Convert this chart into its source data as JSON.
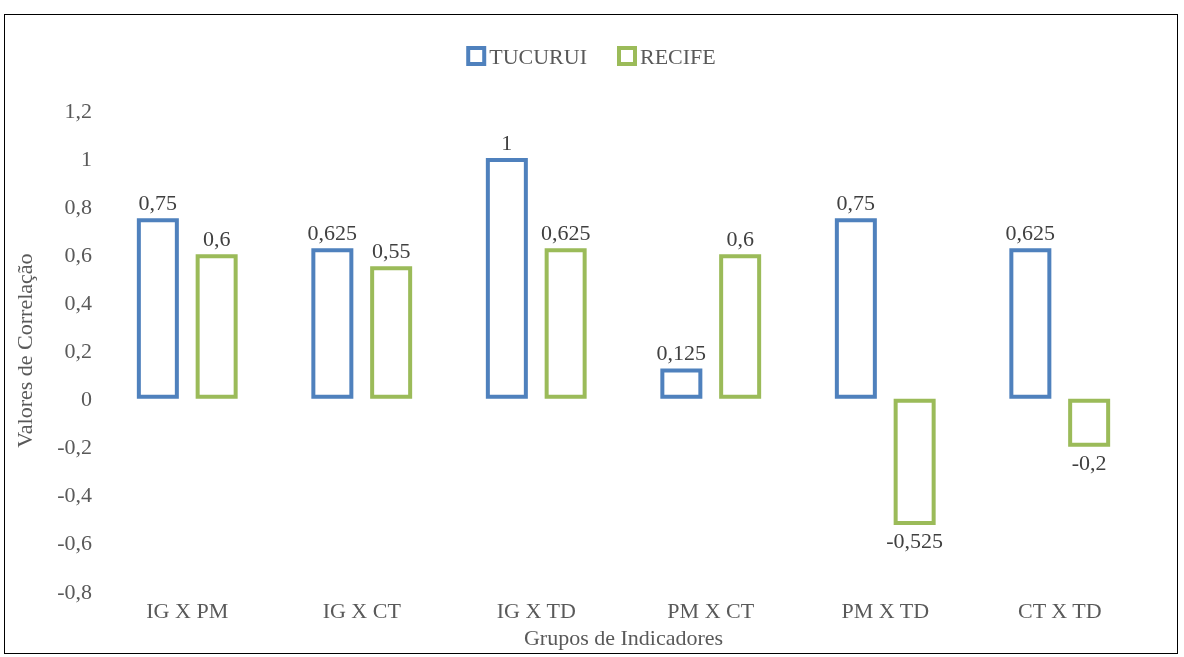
{
  "chart_data": {
    "type": "bar",
    "xlabel": "Grupos de Indicadores",
    "ylabel": "Valores de Correlação",
    "categories": [
      "IG X PM",
      "IG X CT",
      "IG X TD",
      "PM X CT",
      "PM X TD",
      "CT X TD"
    ],
    "series": [
      {
        "name": "TUCURUI",
        "color": "#4f81bd",
        "values": [
          0.75,
          0.625,
          1,
          0.125,
          0.75,
          0.625
        ],
        "value_labels": [
          "0,75",
          "0,625",
          "1",
          "0,125",
          "0,75",
          "0,625"
        ]
      },
      {
        "name": "RECIFE",
        "color": "#9bbb59",
        "values": [
          0.6,
          0.55,
          0.625,
          0.6,
          -0.525,
          -0.2
        ],
        "value_labels": [
          "0,6",
          "0,55",
          "0,625",
          "0,6",
          "-0,525",
          "-0,2"
        ]
      }
    ],
    "ylim": [
      -0.8,
      1.2
    ],
    "yticks": [
      {
        "value": -0.8,
        "label": "-0,8"
      },
      {
        "value": -0.6,
        "label": "-0,6"
      },
      {
        "value": -0.4,
        "label": "-0,4"
      },
      {
        "value": -0.2,
        "label": "-0,2"
      },
      0,
      {
        "value": 0.2,
        "label": "0,2"
      },
      {
        "value": 0.4,
        "label": "0,4"
      },
      {
        "value": 0.6,
        "label": "0,6"
      },
      {
        "value": 0.8,
        "label": "0,8"
      },
      1,
      {
        "value": 1.2,
        "label": "1,2"
      }
    ],
    "grid": false,
    "legend": "top"
  }
}
